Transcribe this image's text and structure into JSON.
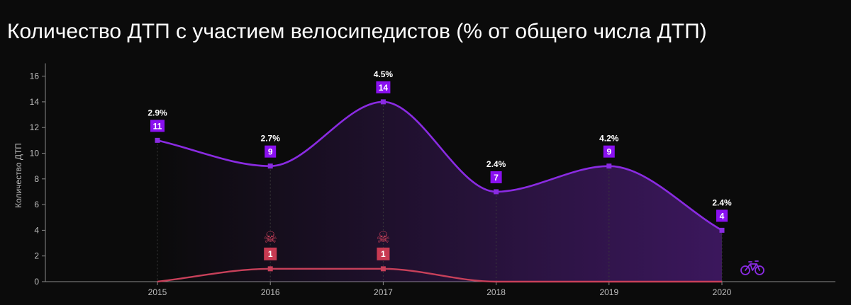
{
  "page": {
    "title": "Количество ДТП с участием велосипедистов (% от общего числа ДТП)"
  },
  "colors": {
    "background": "#0b0b0b",
    "primary_series": "#8a2be2",
    "primary_badge": "#8a10f0",
    "secondary_series": "#c8405a",
    "secondary_badge": "#c83a52",
    "axis": "#8a8a8a",
    "tick_text": "#bdbdbd"
  },
  "icons": {
    "fatality": "skull-crossbones-icon",
    "bicycle": "bicycle-icon"
  },
  "chart_data": {
    "type": "area",
    "title": "Количество ДТП с участием велосипедистов (% от общего числа ДТП)",
    "xlabel": "",
    "ylabel": "Количество ДТП",
    "categories": [
      "2015",
      "2016",
      "2017",
      "2018",
      "2019",
      "2020"
    ],
    "ylim": [
      0,
      17
    ],
    "yticks": [
      0,
      2,
      4,
      6,
      8,
      10,
      12,
      14,
      16
    ],
    "grid": false,
    "series": [
      {
        "name": "ДТП с участием велосипедистов",
        "values": [
          11,
          9,
          14,
          7,
          9,
          4
        ],
        "percent_labels": [
          "2.9%",
          "2.7%",
          "4.5%",
          "2.4%",
          "4.2%",
          "2.4%"
        ],
        "fill": "gradient"
      },
      {
        "name": "Погибшие",
        "values": [
          0,
          1,
          1,
          0,
          0,
          0
        ],
        "badge_labels": [
          "",
          "1",
          "1",
          "",
          "",
          ""
        ],
        "icon_marks": [
          false,
          true,
          true,
          false,
          false,
          false
        ]
      }
    ]
  }
}
